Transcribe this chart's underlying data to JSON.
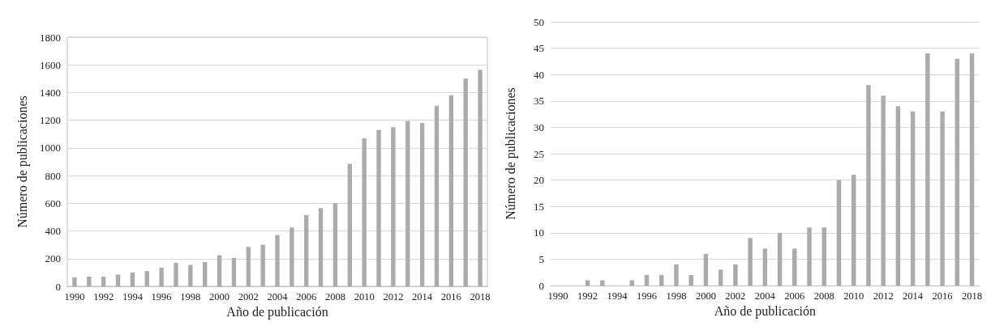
{
  "chart_data": [
    {
      "type": "bar",
      "xlabel": "Año de publicación",
      "ylabel": "Número de publicaciones",
      "categories": [
        "1990",
        null,
        "1992",
        null,
        "1994",
        null,
        "1996",
        null,
        "1998",
        null,
        "2000",
        null,
        "2002",
        null,
        "2004",
        null,
        "2006",
        null,
        "2008",
        null,
        "2010",
        null,
        "2012",
        null,
        "2014",
        null,
        "2016",
        null,
        "2018"
      ],
      "values": [
        65,
        70,
        70,
        85,
        100,
        110,
        135,
        170,
        155,
        175,
        225,
        205,
        285,
        300,
        370,
        425,
        515,
        565,
        600,
        885,
        1070,
        1130,
        1150,
        1195,
        1180,
        1305,
        1380,
        1500,
        1565
      ],
      "color": "#aeaaaa",
      "ylim": [
        0,
        1800
      ],
      "yticks": [
        0,
        200,
        400,
        600,
        800,
        1000,
        1200,
        1400,
        1600,
        1800
      ],
      "grid": "y"
    },
    {
      "type": "bar",
      "xlabel": "Año de publicación",
      "ylabel": "Número de publicaciones",
      "categories": [
        "1990",
        null,
        "1992",
        null,
        "1994",
        null,
        "1996",
        null,
        "1998",
        null,
        "2000",
        null,
        "2002",
        null,
        "2004",
        null,
        "2006",
        null,
        "2008",
        null,
        "2010",
        null,
        "2012",
        null,
        "2014",
        null,
        "2016",
        null,
        "2018"
      ],
      "values": [
        0,
        0,
        1,
        1,
        0,
        1,
        2,
        2,
        4,
        2,
        6,
        3,
        4,
        9,
        7,
        10,
        7,
        11,
        11,
        20,
        21,
        38,
        36,
        34,
        33,
        44,
        33,
        43,
        44
      ],
      "color": "#aeaaaa",
      "ylim": [
        0,
        50
      ],
      "yticks": [
        0,
        5,
        10,
        15,
        20,
        25,
        30,
        35,
        40,
        45,
        50
      ],
      "grid": "y"
    }
  ]
}
